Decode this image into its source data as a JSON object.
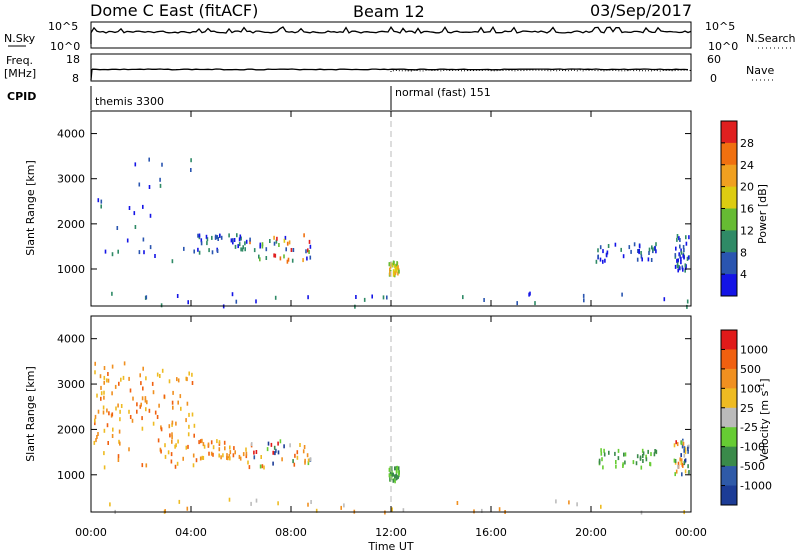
{
  "header": {
    "title": "Dome C East (fitACF)",
    "beam": "Beam 12",
    "date": "03/Sep/2017"
  },
  "top_panels": {
    "nsky": {
      "label": "N.Sky",
      "yticks": [
        "10^5",
        "10^0"
      ]
    },
    "nsearch": {
      "label": "N.Search",
      "yticks": [
        "10^5",
        "10^0"
      ]
    },
    "freq": {
      "label_line1": "Freq.",
      "label_line2": "[MHz]",
      "yticks": [
        "18",
        "8"
      ]
    },
    "nave": {
      "label": "Nave",
      "yticks": [
        "60",
        "0"
      ]
    },
    "cpid": {
      "label": "CPID",
      "programs": [
        {
          "name": "themis 3300",
          "start_hour": 0.1
        },
        {
          "name": "normal (fast) 151",
          "start_hour": 12.0
        }
      ]
    }
  },
  "x_axis": {
    "label": "Time UT",
    "ticks": [
      "00:00",
      "04:00",
      "08:00",
      "12:00",
      "16:00",
      "20:00",
      "00:00"
    ],
    "tick_hours": [
      0,
      4,
      8,
      12,
      16,
      20,
      24
    ],
    "range": [
      0,
      24
    ]
  },
  "chart_data": [
    {
      "type": "heatmap",
      "panel": "power",
      "ylabel": "Slant Range [km]",
      "ylim": [
        180,
        4500
      ],
      "yticks": [
        1000,
        2000,
        3000,
        4000
      ],
      "colorbar": {
        "label": "Power [dB]",
        "ticks": [
          "4",
          "8",
          "12",
          "16",
          "20",
          "24",
          "28"
        ],
        "colors": [
          "#1414e6",
          "#2a55b0",
          "#2f8a66",
          "#66bb33",
          "#ddcc11",
          "#f0a020",
          "#f07010",
          "#e02020"
        ]
      },
      "clusters": [
        {
          "t": [
            6.2,
            8.8
          ],
          "r": [
            1200,
            1800
          ],
          "intensity": "high"
        },
        {
          "t": [
            4.2,
            6.2
          ],
          "r": [
            1400,
            1800
          ],
          "intensity": "low"
        },
        {
          "t": [
            11.9,
            12.3
          ],
          "r": [
            900,
            1200
          ],
          "intensity": "mid"
        },
        {
          "t": [
            20.1,
            22.6
          ],
          "r": [
            1200,
            1600
          ],
          "intensity": "low"
        },
        {
          "t": [
            23.3,
            23.9
          ],
          "r": [
            1000,
            1800
          ],
          "intensity": "low"
        },
        {
          "t": [
            0.1,
            4.2
          ],
          "r": [
            1200,
            3500
          ],
          "intensity": "sparse"
        },
        {
          "t": [
            0.5,
            23.9
          ],
          "r": [
            200,
            500
          ],
          "intensity": "sparse"
        }
      ]
    },
    {
      "type": "heatmap",
      "panel": "velocity",
      "ylabel": "Slant Range [km]",
      "ylim": [
        180,
        4500
      ],
      "yticks": [
        1000,
        2000,
        3000,
        4000
      ],
      "colorbar": {
        "label": "Velocity [m s^-1]",
        "ticks": [
          "1000",
          "500",
          "100",
          "25",
          "-25",
          "-100",
          "-500",
          "-1000"
        ],
        "colors": [
          "#1c3c96",
          "#2f5aa8",
          "#3a8a4a",
          "#66cc33",
          "#bbbbbb",
          "#eebb22",
          "#f09020",
          "#f06010",
          "#e01a1a"
        ]
      },
      "clusters": [
        {
          "t": [
            6.2,
            8.8
          ],
          "r": [
            1200,
            1800
          ],
          "intensity": "mixed"
        },
        {
          "t": [
            4.2,
            6.2
          ],
          "r": [
            1400,
            1800
          ],
          "intensity": "orange"
        },
        {
          "t": [
            11.9,
            12.3
          ],
          "r": [
            900,
            1200
          ],
          "intensity": "green"
        },
        {
          "t": [
            20.1,
            22.6
          ],
          "r": [
            1200,
            1600
          ],
          "intensity": "green"
        },
        {
          "t": [
            23.3,
            23.9
          ],
          "r": [
            1000,
            1800
          ],
          "intensity": "mixed"
        },
        {
          "t": [
            0.1,
            4.2
          ],
          "r": [
            1200,
            3500
          ],
          "intensity": "orange"
        },
        {
          "t": [
            0.5,
            23.9
          ],
          "r": [
            200,
            500
          ],
          "intensity": "sparse"
        }
      ]
    }
  ]
}
